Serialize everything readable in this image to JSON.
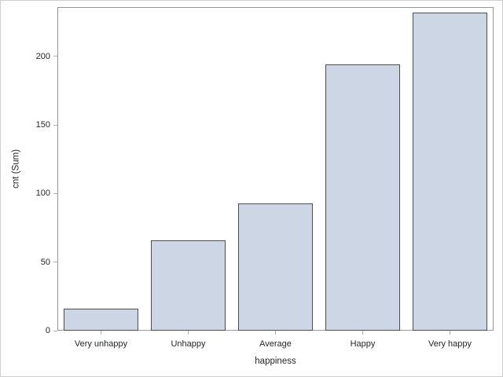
{
  "figure": {
    "background": "#ffffff",
    "border_color": "#cfcfcf"
  },
  "chart_data": {
    "type": "bar",
    "categories": [
      "Very unhappy",
      "Unhappy",
      "Average",
      "Happy",
      "Very happy"
    ],
    "values": [
      16,
      66,
      93,
      194,
      232
    ],
    "xlabel": "happiness",
    "ylabel": "cnt (Sum)",
    "yticks": [
      0,
      50,
      100,
      150,
      200
    ],
    "ylim": [
      0,
      236
    ],
    "grid": false,
    "legend": "none",
    "colors": {
      "bar_fill": "#ccd6e4",
      "bar_border": "#4a4d52",
      "plot_border": "#979797",
      "tick_mark": "#aab2ba",
      "text": "#262626"
    }
  }
}
